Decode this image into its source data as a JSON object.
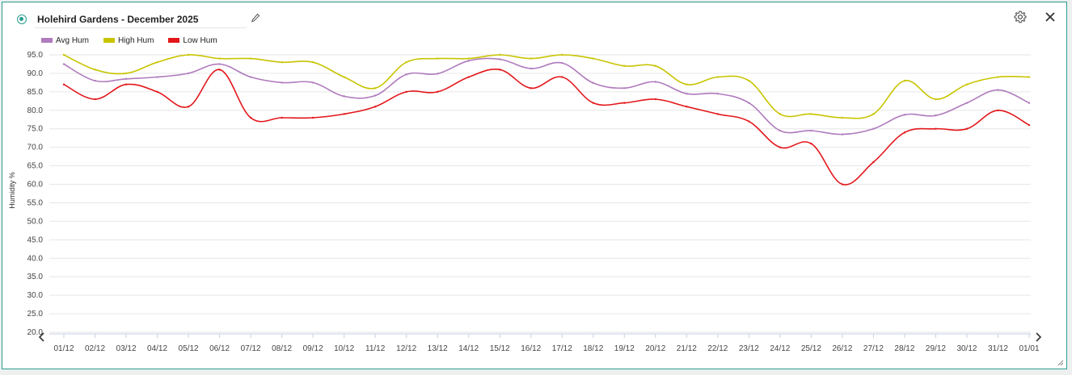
{
  "widget": {
    "title": "Holehird Gardens - December 2025",
    "accent_color": "#2a9d8f",
    "icons": [
      "status-indicator-icon",
      "pencil-icon",
      "gear-icon",
      "close-icon",
      "chevron-left-icon",
      "chevron-right-icon",
      "resize-handle-icon"
    ]
  },
  "chart_data": {
    "type": "line",
    "ylabel": "Humidity %",
    "xlabel": "",
    "ylim": [
      20,
      95
    ],
    "yticks": [
      "20.0",
      "25.0",
      "30.0",
      "35.0",
      "40.0",
      "45.0",
      "50.0",
      "55.0",
      "60.0",
      "65.0",
      "70.0",
      "75.0",
      "80.0",
      "85.0",
      "90.0",
      "95.0"
    ],
    "grid": true,
    "legend_position": "top-left",
    "categories": [
      "01/12",
      "02/12",
      "03/12",
      "04/12",
      "05/12",
      "06/12",
      "07/12",
      "08/12",
      "09/12",
      "10/12",
      "11/12",
      "12/12",
      "13/12",
      "14/12",
      "15/12",
      "16/12",
      "17/12",
      "18/12",
      "19/12",
      "20/12",
      "21/12",
      "22/12",
      "23/12",
      "24/12",
      "25/12",
      "26/12",
      "27/12",
      "28/12",
      "29/12",
      "30/12",
      "31/12",
      "01/01"
    ],
    "series": [
      {
        "name": "Avg Hum",
        "color": "#b07bbd",
        "values": [
          92.5,
          88.0,
          88.5,
          89.0,
          90.0,
          92.5,
          89.0,
          87.5,
          87.5,
          83.8,
          84.0,
          89.7,
          89.9,
          93.4,
          93.8,
          91.3,
          92.8,
          87.4,
          86.0,
          87.7,
          84.5,
          84.5,
          82.0,
          74.5,
          74.5,
          73.5,
          75.0,
          78.8,
          78.6,
          82.0,
          85.5,
          82.0
        ]
      },
      {
        "name": "High Hum",
        "color": "#c8c400",
        "values": [
          95.0,
          91.0,
          90.0,
          93.0,
          95.0,
          94.0,
          94.0,
          93.0,
          93.0,
          89.0,
          86.0,
          93.0,
          94.0,
          94.0,
          95.0,
          94.0,
          95.0,
          94.0,
          92.0,
          92.0,
          87.0,
          89.0,
          88.0,
          79.0,
          79.0,
          78.0,
          79.0,
          88.0,
          83.0,
          87.0,
          89.0,
          89.0
        ]
      },
      {
        "name": "Low Hum",
        "color": "#e3161a",
        "values": [
          87.0,
          83.0,
          87.0,
          85.0,
          81.0,
          91.0,
          78.0,
          78.0,
          78.0,
          79.0,
          81.0,
          85.0,
          85.0,
          89.0,
          91.0,
          86.0,
          89.0,
          82.0,
          82.0,
          83.0,
          81.0,
          79.0,
          77.0,
          70.0,
          71.0,
          60.0,
          66.0,
          74.0,
          75.0,
          75.0,
          80.0,
          76.0
        ]
      }
    ]
  }
}
